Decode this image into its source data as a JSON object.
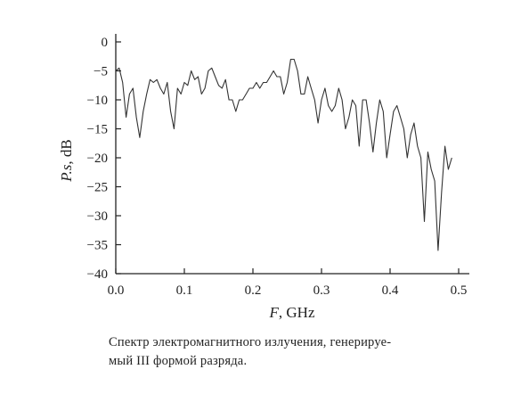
{
  "chart_data": {
    "type": "line",
    "xlabel_var": "F",
    "xlabel_unit": ", GHz",
    "ylabel_var": "P.s",
    "ylabel_unit": ", dB",
    "xlim": [
      0.0,
      0.5
    ],
    "ylim": [
      -40,
      0
    ],
    "xticks": [
      0.0,
      0.1,
      0.2,
      0.3,
      0.4,
      0.5
    ],
    "xtick_labels": [
      "0.0",
      "0.1",
      "0.2",
      "0.3",
      "0.4",
      "0.5"
    ],
    "yticks": [
      0,
      -5,
      -10,
      -15,
      -20,
      -25,
      -30,
      -35,
      -40
    ],
    "ytick_labels": [
      "0",
      "−5",
      "−10",
      "−15",
      "−20",
      "−25",
      "−30",
      "−35",
      "−40"
    ],
    "grid": false,
    "series": [
      {
        "color": "#333333",
        "x": [
          0.0,
          0.005,
          0.01,
          0.015,
          0.02,
          0.025,
          0.03,
          0.035,
          0.04,
          0.045,
          0.05,
          0.055,
          0.06,
          0.065,
          0.07,
          0.075,
          0.08,
          0.085,
          0.09,
          0.095,
          0.1,
          0.105,
          0.11,
          0.115,
          0.12,
          0.125,
          0.13,
          0.135,
          0.14,
          0.145,
          0.15,
          0.155,
          0.16,
          0.165,
          0.17,
          0.175,
          0.18,
          0.185,
          0.19,
          0.195,
          0.2,
          0.205,
          0.21,
          0.215,
          0.22,
          0.225,
          0.23,
          0.235,
          0.24,
          0.245,
          0.25,
          0.255,
          0.26,
          0.265,
          0.27,
          0.275,
          0.28,
          0.285,
          0.29,
          0.295,
          0.3,
          0.305,
          0.31,
          0.315,
          0.32,
          0.325,
          0.33,
          0.335,
          0.34,
          0.345,
          0.35,
          0.355,
          0.36,
          0.365,
          0.37,
          0.375,
          0.38,
          0.385,
          0.39,
          0.395,
          0.4,
          0.405,
          0.41,
          0.415,
          0.42,
          0.425,
          0.43,
          0.435,
          0.44,
          0.445,
          0.45,
          0.455,
          0.46,
          0.465,
          0.47,
          0.475,
          0.48,
          0.485,
          0.49
        ],
        "values": [
          -5,
          -4.5,
          -7,
          -13,
          -9,
          -8,
          -13,
          -16.5,
          -12,
          -9,
          -6.5,
          -7,
          -6.5,
          -8,
          -9,
          -7,
          -12,
          -15,
          -8,
          -9,
          -7,
          -7.5,
          -5,
          -6.5,
          -6,
          -9,
          -8,
          -5,
          -4.5,
          -6,
          -7.5,
          -8,
          -6.5,
          -10,
          -10,
          -12,
          -10,
          -10,
          -9,
          -8,
          -8,
          -7,
          -8,
          -7,
          -7,
          -6,
          -5,
          -6,
          -6,
          -9,
          -7,
          -3,
          -3,
          -5,
          -9,
          -9,
          -6,
          -8,
          -10,
          -14,
          -10,
          -8,
          -11,
          -12,
          -11,
          -8,
          -10,
          -15,
          -13,
          -10,
          -11,
          -18,
          -10,
          -10,
          -14,
          -19,
          -14,
          -10,
          -12,
          -20,
          -16,
          -12,
          -11,
          -13,
          -15,
          -20,
          -16,
          -14,
          -18,
          -20,
          -31,
          -19,
          -22,
          -24,
          -36,
          -26,
          -18,
          -22,
          -20
        ]
      }
    ]
  },
  "caption": {
    "line1": "Спектр электромагнитного излучения, генерируе-",
    "line2": "мый III формой разряда."
  }
}
